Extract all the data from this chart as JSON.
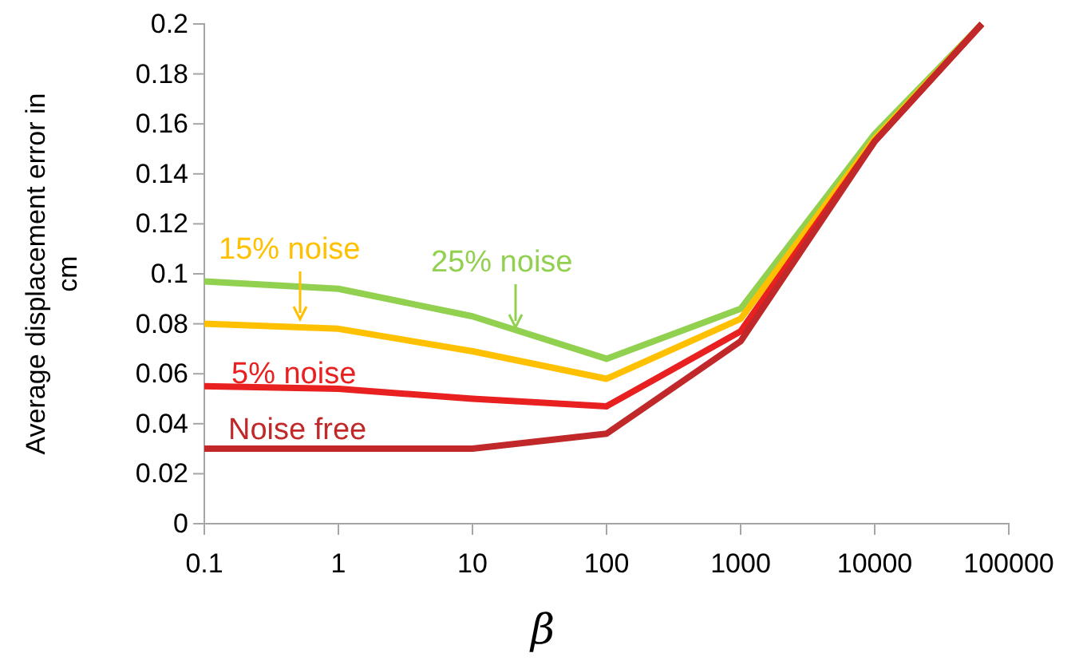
{
  "chart_data": {
    "type": "line",
    "xlabel": "β",
    "ylabel": "Average displacement error in cm",
    "log": "x",
    "xlim": [
      0.1,
      100000
    ],
    "xticks": [
      0.1,
      1,
      10,
      100,
      1000,
      10000,
      100000
    ],
    "ylim": [
      0,
      0.2
    ],
    "yticks": [
      0,
      0.02,
      0.04,
      0.06,
      0.08,
      0.1,
      0.12,
      0.14,
      0.16,
      0.18,
      0.2
    ],
    "grid": false,
    "marker": "none",
    "line_style": "solid",
    "series": [
      {
        "name": "25% noise",
        "color": "#92d050",
        "x": [
          0.1,
          1,
          10,
          100,
          1000,
          10000,
          63000
        ],
        "values": [
          0.097,
          0.094,
          0.083,
          0.066,
          0.086,
          0.156,
          0.2
        ]
      },
      {
        "name": "15% noise",
        "color": "#ffc000",
        "x": [
          0.1,
          1,
          10,
          100,
          1000,
          10000,
          63000
        ],
        "values": [
          0.08,
          0.078,
          0.069,
          0.058,
          0.082,
          0.154,
          0.2
        ]
      },
      {
        "name": "5% noise",
        "color": "#e82020",
        "x": [
          0.1,
          1,
          10,
          100,
          1000,
          10000,
          63000
        ],
        "values": [
          0.055,
          0.054,
          0.05,
          0.047,
          0.077,
          0.153,
          0.2
        ]
      },
      {
        "name": "Noise free",
        "color": "#c0282a",
        "x": [
          0.1,
          1,
          10,
          100,
          1000,
          10000,
          63000
        ],
        "values": [
          0.03,
          0.03,
          0.03,
          0.036,
          0.073,
          0.153,
          0.2
        ]
      }
    ]
  }
}
